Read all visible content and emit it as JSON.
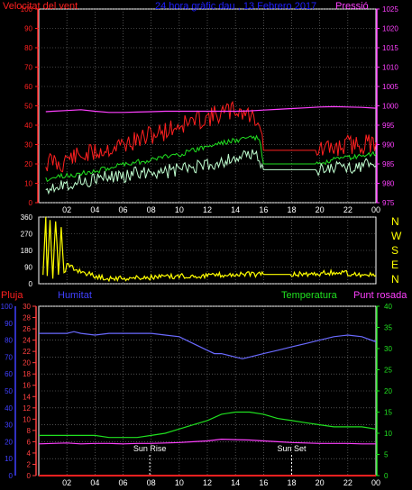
{
  "header": {
    "wind_title": "Velocitat del vent",
    "center_title": "24 hora gràfic dau , 13 Febrero 2017",
    "pressure_title": "Pressió",
    "colors": {
      "wind": "#ff2020",
      "title": "#2020ff",
      "pressure": "#ff40ff"
    }
  },
  "compass": {
    "labels": [
      "N",
      "W",
      "S",
      "E",
      "N"
    ],
    "color": "#ffff00"
  },
  "lower_header": {
    "rain": "Pluja",
    "humidity": "Humitat",
    "temperature": "Temperatura",
    "dew_point": "Punt rosada"
  },
  "annotations": {
    "sunrise": "Sun Rise",
    "sunset": "Sun Set"
  },
  "chart_data": [
    {
      "type": "line",
      "name": "wind-and-pressure",
      "x_tick_labels": [
        "02",
        "04",
        "06",
        "08",
        "10",
        "12",
        "14",
        "16",
        "18",
        "20",
        "22",
        "00"
      ],
      "y_left": {
        "ticks": [
          0,
          10,
          20,
          30,
          40,
          50,
          60,
          70,
          80,
          90,
          100
        ],
        "lim": [
          0,
          100
        ],
        "color": "#ff2020"
      },
      "y_right": {
        "ticks": [
          975,
          980,
          985,
          990,
          995,
          1000,
          1005,
          1010,
          1015,
          1020,
          1025
        ],
        "lim": [
          975,
          1025
        ],
        "color": "#ff40ff"
      },
      "series": [
        {
          "key": "gust",
          "color": "#ff2020",
          "x": [
            0.5,
            1,
            1.5,
            2,
            3,
            4,
            5,
            6,
            7,
            8,
            9,
            10,
            11,
            12,
            12.5,
            13,
            13.5,
            14,
            14.5,
            15,
            15.3,
            15.7,
            16,
            17,
            18,
            19,
            19.8,
            20.2,
            21,
            22,
            23,
            24
          ],
          "y": [
            20,
            22,
            19,
            23,
            24,
            26,
            28,
            30,
            32,
            35,
            37,
            40,
            42,
            44,
            45,
            46,
            47,
            48,
            47,
            45,
            44,
            43,
            27,
            27,
            27,
            27,
            27,
            27,
            28,
            30,
            30,
            31
          ]
        },
        {
          "key": "average",
          "color": "#20e020",
          "x": [
            0.5,
            1,
            2,
            3,
            4,
            5,
            6,
            7,
            8,
            9,
            10,
            11,
            12,
            13,
            14,
            15,
            15.7,
            16,
            17,
            18,
            19,
            19.8,
            20.2,
            21,
            22,
            23,
            24
          ],
          "y": [
            12,
            13,
            14,
            15,
            16,
            18,
            20,
            21,
            22,
            24,
            25,
            27,
            29,
            31,
            32,
            34,
            33,
            20,
            20,
            20,
            20,
            20,
            20,
            22,
            23,
            24,
            25
          ]
        },
        {
          "key": "wind_speed",
          "color": "#c0ffd0",
          "x": [
            0.5,
            1,
            2,
            3,
            4,
            5,
            6,
            7,
            8,
            9,
            10,
            11,
            12,
            13,
            14,
            15,
            15.7,
            16,
            17,
            18,
            19,
            19.8,
            20.2,
            21,
            22,
            23,
            24
          ],
          "y": [
            8,
            9,
            10,
            11,
            12,
            13,
            14,
            15,
            16,
            16,
            17,
            18,
            19,
            21,
            23,
            24,
            24,
            17,
            17,
            17,
            17,
            17,
            17,
            18,
            18,
            19,
            19
          ]
        },
        {
          "key": "pressure",
          "color": "#ff40ff",
          "x": [
            0.5,
            1,
            2,
            3,
            4,
            5,
            6,
            7,
            8,
            9,
            10,
            11,
            12,
            13,
            14,
            15,
            16,
            17,
            18,
            19,
            20,
            21,
            22,
            23,
            24
          ],
          "y": [
            998.5,
            998.6,
            998.8,
            999,
            998.6,
            998.3,
            998.3,
            998.4,
            998.5,
            998.6,
            998.6,
            998.6,
            998.6,
            998.6,
            998.6,
            998.7,
            998.9,
            999.1,
            999.3,
            999.5,
            999.7,
            999.8,
            999.7,
            999.6,
            999.4
          ]
        }
      ]
    },
    {
      "type": "line",
      "name": "wind-direction",
      "x_tick_labels": [],
      "y_left": {
        "ticks": [
          0,
          90,
          180,
          270,
          360
        ],
        "lim": [
          0,
          360
        ],
        "color": "#ffffff"
      },
      "series": [
        {
          "key": "direction",
          "color": "#ffff00",
          "x": [
            0.3,
            0.5,
            0.6,
            0.8,
            1,
            1.2,
            1.4,
            1.6,
            1.8,
            2,
            2.5,
            3,
            4,
            5,
            6,
            8,
            10,
            12,
            14,
            16,
            18,
            20,
            21,
            22,
            23,
            24
          ],
          "y": [
            40,
            350,
            30,
            340,
            40,
            350,
            60,
            300,
            50,
            100,
            80,
            70,
            40,
            30,
            30,
            35,
            40,
            45,
            50,
            50,
            50,
            55,
            60,
            55,
            50,
            45
          ]
        }
      ]
    },
    {
      "type": "line",
      "name": "rain-humidity-temperature",
      "x_tick_labels": [
        "02",
        "04",
        "06",
        "08",
        "10",
        "12",
        "14",
        "16",
        "18",
        "20",
        "22",
        "00"
      ],
      "y_far_left": {
        "ticks": [
          0,
          10,
          20,
          30,
          40,
          50,
          60,
          70,
          80,
          90,
          100
        ],
        "lim": [
          0,
          100
        ],
        "color": "#4040ff"
      },
      "y_left": {
        "ticks": [
          0,
          2,
          4,
          6,
          8,
          10,
          12,
          14,
          16,
          18,
          20,
          22,
          24,
          26,
          28,
          30
        ],
        "lim": [
          0,
          30
        ],
        "color": "#ff4040"
      },
      "y_right": {
        "ticks": [
          0,
          5,
          10,
          15,
          20,
          25,
          30,
          35,
          40
        ],
        "lim": [
          0,
          40
        ],
        "color": "#20e020"
      },
      "series": [
        {
          "key": "humidity",
          "color": "#6a6aff",
          "x": [
            0,
            1,
            2,
            2.5,
            3,
            4,
            5,
            6,
            7,
            8,
            9,
            10,
            11,
            12,
            12.5,
            13,
            14,
            14.5,
            15,
            16,
            17,
            18,
            19,
            20,
            21,
            22,
            23,
            24
          ],
          "y": [
            84,
            84,
            84,
            85,
            84,
            83,
            84,
            84,
            84,
            84,
            83,
            82,
            78,
            74,
            72,
            72,
            70,
            69,
            70,
            72,
            74,
            76,
            78,
            80,
            82,
            83,
            82,
            79
          ]
        },
        {
          "key": "temperature",
          "color": "#20e020",
          "x": [
            0,
            1,
            2,
            3,
            4,
            5,
            6,
            7,
            8,
            9,
            10,
            11,
            12,
            13,
            14,
            15,
            16,
            17,
            18,
            19,
            20,
            21,
            22,
            23,
            24
          ],
          "y": [
            9.5,
            9.5,
            9.5,
            9.5,
            9.5,
            9.0,
            9.0,
            9.0,
            9.5,
            10.0,
            11.0,
            12.0,
            13.0,
            14.5,
            15.0,
            15.0,
            14.5,
            13.5,
            13.0,
            12.5,
            12.0,
            11.5,
            11.5,
            11.5,
            11.0
          ]
        },
        {
          "key": "dew_point",
          "color": "#ff40ff",
          "x": [
            0,
            1,
            2,
            3,
            4,
            5,
            6,
            7,
            8,
            9,
            10,
            11,
            12,
            13,
            14,
            15,
            16,
            17,
            18,
            19,
            20,
            21,
            22,
            23,
            24
          ],
          "y": [
            7.5,
            7.6,
            7.7,
            7.5,
            7.6,
            7.6,
            7.5,
            7.6,
            7.6,
            7.7,
            7.8,
            8.0,
            8.2,
            8.6,
            8.5,
            8.4,
            8.2,
            8.0,
            7.8,
            7.7,
            7.6,
            7.6,
            7.6,
            7.5,
            7.5
          ]
        },
        {
          "key": "rain",
          "color": "#ff2020",
          "x": [
            0,
            24
          ],
          "y": [
            0,
            0
          ]
        }
      ],
      "sunrise_hour": 7.9,
      "sunset_hour": 18.0
    }
  ]
}
